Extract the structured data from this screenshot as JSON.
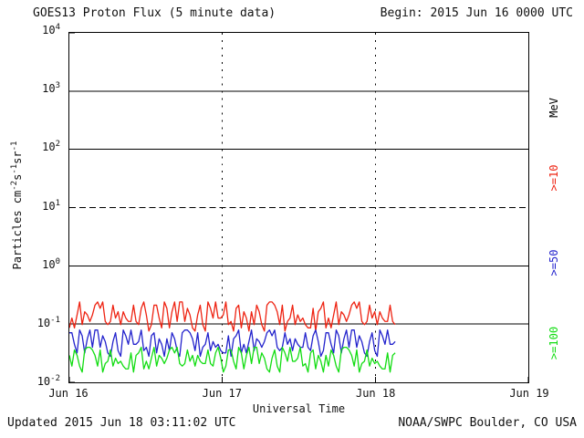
{
  "header": {
    "title": "GOES13 Proton Flux (5 minute data)",
    "begin": "Begin: 2015 Jun 16 0000 UTC"
  },
  "footer": {
    "updated": "Updated 2015 Jun 18 03:11:02 UTC",
    "source": "NOAA/SWPC Boulder, CO USA"
  },
  "chart_data": {
    "type": "line",
    "title": "GOES13 Proton Flux (5 minute data)",
    "xlabel": "Universal Time",
    "ylabel_text": "Particles cm-2 s-1 sr-1",
    "ylabel_parts": [
      {
        "text": "Particles cm"
      },
      {
        "sup": "-2"
      },
      {
        "text": "s"
      },
      {
        "sup": "-1"
      },
      {
        "text": "sr"
      },
      {
        "sup": "-1"
      }
    ],
    "yscale": "log",
    "ylim_log": [
      -2,
      4
    ],
    "xlim_days": [
      0,
      3
    ],
    "y_ticks": [
      "4",
      "3",
      "2",
      "1",
      "0",
      "-1",
      "-2"
    ],
    "x_ticks": [
      {
        "label": "Jun 16",
        "day": 0
      },
      {
        "label": "Jun 17",
        "day": 1
      },
      {
        "label": "Jun 18",
        "day": 2
      },
      {
        "label": "Jun 19",
        "day": 3
      }
    ],
    "grid": {
      "h_solid_exp": [
        3,
        2,
        0,
        -1
      ],
      "h_dashed_exp": [
        1
      ],
      "v_dotted_day": [
        1,
        2
      ]
    },
    "right_axis": {
      "unit": "MeV",
      "unit_color": "#000000",
      "thresholds": [
        {
          "label": ">=10",
          "color": "#ee2211"
        },
        {
          "label": ">=50",
          "color": "#2222cc"
        },
        {
          "label": ">=100",
          "color": "#11dd11"
        }
      ],
      "label_center_exp": [
        2.7,
        1.5,
        0.05,
        -1.32
      ]
    },
    "series": [
      {
        "name": ">=10 MeV",
        "color": "#ee2211",
        "t_start": 0,
        "t_end": 2.13,
        "values": [
          0.086,
          0.127,
          0.086,
          0.144,
          0.24,
          0.098,
          0.163,
          0.144,
          0.111,
          0.144,
          0.211,
          0.24,
          0.186,
          0.24,
          0.111,
          0.098,
          0.111,
          0.211,
          0.127,
          0.163,
          0.098,
          0.163,
          0.127,
          0.111,
          0.111,
          0.211,
          0.111,
          0.098,
          0.186,
          0.24,
          0.144,
          0.076,
          0.098,
          0.211,
          0.211,
          0.127,
          0.086,
          0.24,
          0.186,
          0.086,
          0.163,
          0.24,
          0.111,
          0.24,
          0.24,
          0.111,
          0.186,
          0.144,
          0.086,
          0.076,
          0.144,
          0.211,
          0.098,
          0.076,
          0.24,
          0.186,
          0.127,
          0.24,
          0.127,
          0.127,
          0.144,
          0.24,
          0.098,
          0.111,
          0.076,
          0.186,
          0.211,
          0.086,
          0.163,
          0.127,
          0.076,
          0.163,
          0.098,
          0.211,
          0.163,
          0.098,
          0.076,
          0.211,
          0.24,
          0.24,
          0.211,
          0.163,
          0.098,
          0.211,
          0.076,
          0.111,
          0.127,
          0.211,
          0.098,
          0.144,
          0.111,
          0.127,
          0.098,
          0.086,
          0.086,
          0.186,
          0.076,
          0.163,
          0.186,
          0.24,
          0.086,
          0.127,
          0.086,
          0.144,
          0.24,
          0.098,
          0.163,
          0.144,
          0.111,
          0.144,
          0.211,
          0.24,
          0.186,
          0.24,
          0.111,
          0.098,
          0.111,
          0.211,
          0.127,
          0.163,
          0.098,
          0.163,
          0.127,
          0.111,
          0.111,
          0.211,
          0.111,
          0.098
        ]
      },
      {
        "name": ">=50 MeV",
        "color": "#2222cc",
        "t_start": 0,
        "t_end": 2.13,
        "values": [
          0.071,
          0.071,
          0.045,
          0.032,
          0.079,
          0.063,
          0.032,
          0.056,
          0.079,
          0.04,
          0.079,
          0.079,
          0.04,
          0.063,
          0.05,
          0.032,
          0.028,
          0.05,
          0.071,
          0.035,
          0.028,
          0.079,
          0.063,
          0.045,
          0.079,
          0.045,
          0.045,
          0.05,
          0.079,
          0.035,
          0.04,
          0.028,
          0.063,
          0.071,
          0.032,
          0.056,
          0.045,
          0.028,
          0.056,
          0.035,
          0.071,
          0.056,
          0.035,
          0.028,
          0.071,
          0.079,
          0.079,
          0.071,
          0.056,
          0.035,
          0.071,
          0.028,
          0.04,
          0.045,
          0.071,
          0.035,
          0.05,
          0.04,
          0.045,
          0.035,
          0.032,
          0.032,
          0.063,
          0.028,
          0.056,
          0.063,
          0.079,
          0.032,
          0.045,
          0.032,
          0.05,
          0.079,
          0.035,
          0.056,
          0.05,
          0.04,
          0.05,
          0.071,
          0.079,
          0.063,
          0.079,
          0.04,
          0.035,
          0.04,
          0.071,
          0.045,
          0.056,
          0.035,
          0.056,
          0.045,
          0.04,
          0.04,
          0.071,
          0.04,
          0.035,
          0.063,
          0.079,
          0.05,
          0.028,
          0.035,
          0.071,
          0.071,
          0.045,
          0.032,
          0.079,
          0.063,
          0.032,
          0.056,
          0.079,
          0.04,
          0.079,
          0.079,
          0.04,
          0.063,
          0.05,
          0.032,
          0.028,
          0.05,
          0.071,
          0.035,
          0.028,
          0.079,
          0.063,
          0.045,
          0.079,
          0.045,
          0.045,
          0.05
        ]
      },
      {
        "name": ">=100 MeV",
        "color": "#11dd11",
        "t_start": 0,
        "t_end": 2.13,
        "values": [
          0.029,
          0.019,
          0.036,
          0.029,
          0.019,
          0.015,
          0.036,
          0.04,
          0.04,
          0.036,
          0.029,
          0.019,
          0.036,
          0.015,
          0.021,
          0.023,
          0.036,
          0.019,
          0.026,
          0.021,
          0.023,
          0.019,
          0.017,
          0.017,
          0.032,
          0.015,
          0.029,
          0.032,
          0.04,
          0.017,
          0.023,
          0.017,
          0.026,
          0.04,
          0.019,
          0.029,
          0.026,
          0.021,
          0.026,
          0.036,
          0.04,
          0.032,
          0.04,
          0.021,
          0.019,
          0.021,
          0.036,
          0.023,
          0.029,
          0.019,
          0.029,
          0.023,
          0.021,
          0.021,
          0.036,
          0.021,
          0.019,
          0.032,
          0.04,
          0.026,
          0.015,
          0.019,
          0.036,
          0.036,
          0.023,
          0.017,
          0.04,
          0.032,
          0.017,
          0.029,
          0.04,
          0.021,
          0.04,
          0.04,
          0.021,
          0.032,
          0.026,
          0.017,
          0.015,
          0.026,
          0.036,
          0.019,
          0.015,
          0.04,
          0.032,
          0.023,
          0.04,
          0.023,
          0.023,
          0.026,
          0.04,
          0.019,
          0.021,
          0.015,
          0.032,
          0.036,
          0.017,
          0.029,
          0.023,
          0.015,
          0.029,
          0.019,
          0.036,
          0.029,
          0.019,
          0.015,
          0.036,
          0.04,
          0.04,
          0.036,
          0.029,
          0.019,
          0.036,
          0.015,
          0.021,
          0.023,
          0.036,
          0.019,
          0.026,
          0.021,
          0.023,
          0.019,
          0.017,
          0.017,
          0.032,
          0.015,
          0.029,
          0.032
        ]
      }
    ]
  }
}
